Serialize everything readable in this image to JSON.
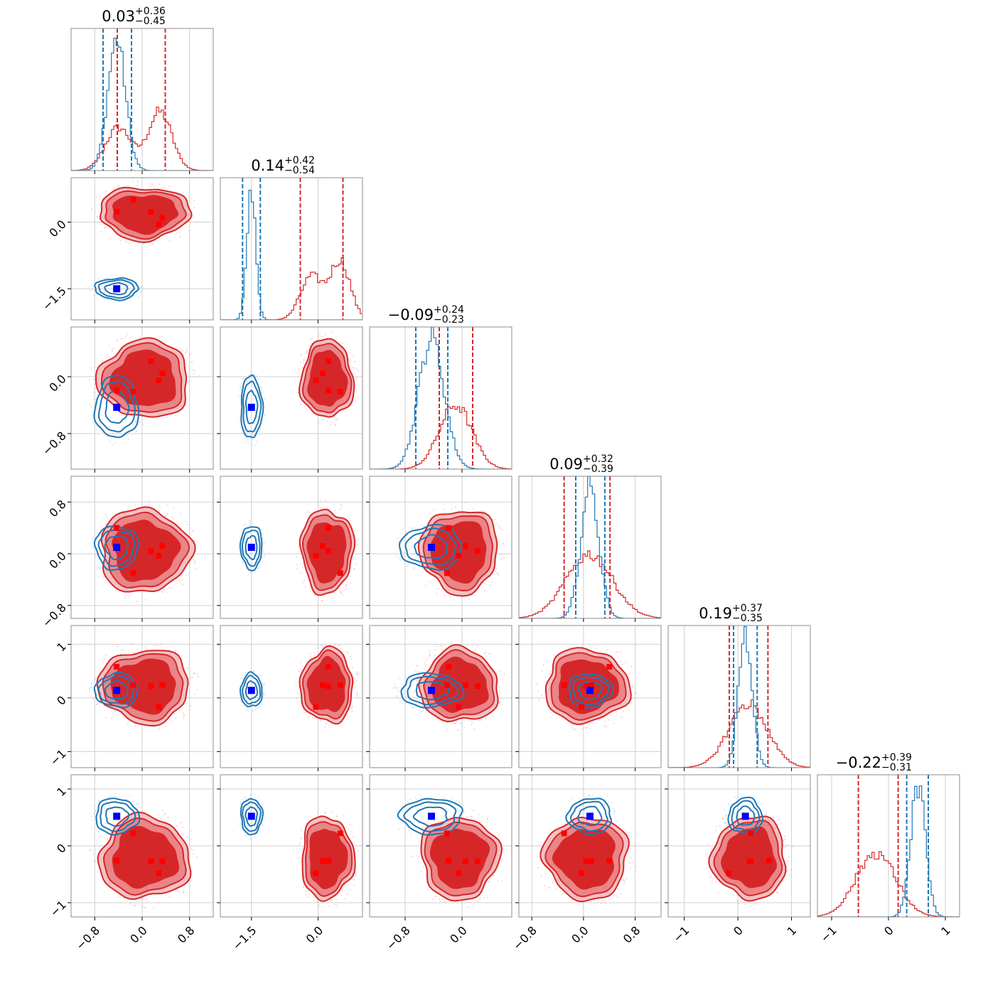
{
  "chart_data": {
    "type": "corner",
    "description_series": [
      {
        "name": "red",
        "color": "#d62728",
        "marker_color": "#ff0000"
      },
      {
        "name": "blue",
        "color": "#1f77b4",
        "marker_color": "#0000ff"
      }
    ],
    "grid": true,
    "params": [
      {
        "title": {
          "value": "0.03",
          "plus": "+0.36",
          "minus": "−0.45"
        },
        "range": [
          -1.2,
          1.2
        ],
        "ticks": [
          -0.8,
          0.0,
          0.8
        ],
        "ticklabels": [
          "−0.8",
          "0.0",
          "0.8"
        ],
        "red_quantiles": [
          -0.42,
          0.39
        ],
        "blue_quantiles": [
          -0.66,
          -0.18
        ]
      },
      {
        "title": {
          "value": "0.14",
          "plus": "+0.42",
          "minus": "−0.54"
        },
        "range": [
          -2.2,
          1.0
        ],
        "ticks": [
          -1.5,
          0.0
        ],
        "ticklabels": [
          "−1.5",
          "0.0"
        ],
        "red_quantiles": [
          -0.4,
          0.56
        ],
        "blue_quantiles": [
          -1.7,
          -1.3
        ]
      },
      {
        "title": {
          "value": "−0.09",
          "plus": "+0.24",
          "minus": "−0.23"
        },
        "range": [
          -1.3,
          0.7
        ],
        "ticks": [
          -0.8,
          0.0
        ],
        "ticklabels": [
          "−0.8",
          "0.0"
        ],
        "red_quantiles": [
          -0.32,
          0.15
        ],
        "blue_quantiles": [
          -0.65,
          -0.2
        ]
      },
      {
        "title": {
          "value": "0.09",
          "plus": "+0.32",
          "minus": "−0.39"
        },
        "range": [
          -1.0,
          1.2
        ],
        "ticks": [
          -0.8,
          0.0,
          0.8
        ],
        "ticklabels": [
          "−0.8",
          "0.0",
          "0.8"
        ],
        "red_quantiles": [
          -0.3,
          0.41
        ],
        "blue_quantiles": [
          -0.12,
          0.33
        ]
      },
      {
        "title": {
          "value": "0.19",
          "plus": "+0.37",
          "minus": "−0.35"
        },
        "range": [
          -1.3,
          1.35
        ],
        "ticks": [
          -1,
          0,
          1
        ],
        "ticklabels": [
          "−1",
          "0",
          "1"
        ],
        "red_quantiles": [
          -0.16,
          0.56
        ],
        "blue_quantiles": [
          -0.08,
          0.36
        ]
      },
      {
        "title": {
          "value": "−0.22",
          "plus": "+0.39",
          "minus": "−0.31"
        },
        "range": [
          -1.25,
          1.25
        ],
        "ticks": [
          -1,
          0,
          1
        ],
        "ticklabels": [
          "−1",
          "0",
          "1"
        ],
        "red_quantiles": [
          -0.53,
          0.17
        ],
        "blue_quantiles": [
          0.32,
          0.7
        ]
      }
    ],
    "histograms": {
      "red": [
        {
          "mean": 0.03,
          "sd": 0.4,
          "bimodal": [
            -0.4,
            0.3
          ]
        },
        {
          "mean": 0.14,
          "sd": 0.45,
          "bimodal": [
            -0.15,
            0.5
          ]
        },
        {
          "mean": -0.09,
          "sd": 0.23
        },
        {
          "mean": 0.09,
          "sd": 0.36
        },
        {
          "mean": 0.19,
          "sd": 0.36
        },
        {
          "mean": -0.22,
          "sd": 0.35
        }
      ],
      "blue": [
        {
          "mean": -0.43,
          "sd": 0.15
        },
        {
          "mean": -1.5,
          "sd": 0.1
        },
        {
          "mean": -0.43,
          "sd": 0.18
        },
        {
          "mean": 0.1,
          "sd": 0.14
        },
        {
          "mean": 0.14,
          "sd": 0.13
        },
        {
          "mean": 0.52,
          "sd": 0.13
        }
      ]
    },
    "modes": {
      "red": [
        [
          0.15,
          0.23,
          0.22,
          0.04,
          0.22,
          -0.27
        ],
        [
          -0.43,
          0.23,
          -0.19,
          0.4,
          0.58,
          -0.26
        ],
        [
          -0.15,
          0.5,
          -0.21,
          -0.3,
          0.24,
          0.22
        ],
        [
          0.28,
          -0.05,
          -0.05,
          -0.03,
          -0.17,
          -0.48
        ],
        [
          0.34,
          0.1,
          0.05,
          0.12,
          0.24,
          -0.27
        ]
      ],
      "blue": [
        -0.43,
        -1.5,
        -0.43,
        0.1,
        0.14,
        0.52
      ]
    }
  }
}
